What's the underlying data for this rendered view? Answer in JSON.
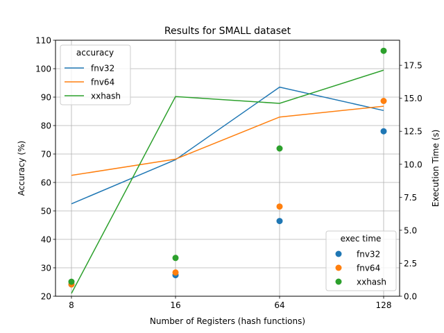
{
  "chart_data": {
    "type": "line",
    "title": "Results for SMALL dataset",
    "xlabel": "Number of Registers (hash functions)",
    "ylabel_left": "Accuracy (%)",
    "ylabel_right": "Execution Time (s)",
    "categories": [
      "8",
      "16",
      "64",
      "128"
    ],
    "x_scale": "categorical",
    "ylim_left": [
      20,
      110
    ],
    "yticks_left": [
      "20",
      "30",
      "40",
      "50",
      "60",
      "70",
      "80",
      "90",
      "100",
      "110"
    ],
    "ylim_right": [
      0,
      19.4
    ],
    "yticks_right": [
      "0.0",
      "2.5",
      "5.0",
      "7.5",
      "10.0",
      "12.5",
      "15.0",
      "17.5"
    ],
    "grid": true,
    "accuracy_series": [
      {
        "name": "fnv32",
        "color": "#1f77b4",
        "values": [
          52.5,
          68,
          93.5,
          85.3
        ]
      },
      {
        "name": "fnv64",
        "color": "#ff7f0e",
        "values": [
          62.5,
          68.2,
          83,
          86.8
        ]
      },
      {
        "name": "xxhash",
        "color": "#2ca02c",
        "values": [
          21,
          90.2,
          87.8,
          99.5
        ]
      }
    ],
    "exec_time_series": [
      {
        "name": "fnv32",
        "color": "#1f77b4",
        "values": [
          0.9,
          1.6,
          5.7,
          12.5
        ]
      },
      {
        "name": "fnv64",
        "color": "#ff7f0e",
        "values": [
          0.9,
          1.8,
          6.8,
          14.8
        ]
      },
      {
        "name": "xxhash",
        "color": "#2ca02c",
        "values": [
          1.1,
          2.9,
          11.2,
          18.6
        ]
      }
    ],
    "legend_accuracy": {
      "title": "accuracy",
      "placement": "top-left"
    },
    "legend_exec": {
      "title": "exec time",
      "placement": "bottom-right"
    }
  }
}
